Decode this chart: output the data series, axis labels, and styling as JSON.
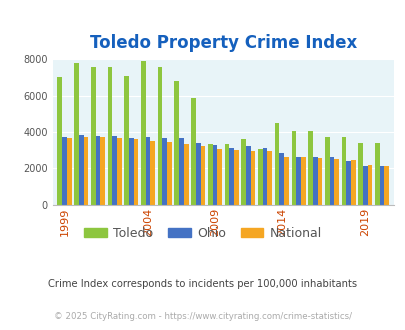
{
  "title": "Toledo Property Crime Index",
  "title_color": "#1560bd",
  "subtitle": "Crime Index corresponds to incidents per 100,000 inhabitants",
  "subtitle_color": "#444444",
  "footer": "© 2025 CityRating.com - https://www.cityrating.com/crime-statistics/",
  "footer_color": "#aaaaaa",
  "years": [
    1999,
    2000,
    2001,
    2002,
    2003,
    2004,
    2005,
    2006,
    2008,
    2009,
    2010,
    2011,
    2013,
    2014,
    2015,
    2016,
    2017,
    2018,
    2019,
    2020
  ],
  "toledo": [
    7050,
    7800,
    7600,
    7600,
    7100,
    7900,
    7600,
    6800,
    5900,
    3350,
    3350,
    3600,
    3050,
    4500,
    4050,
    4050,
    3700,
    3700,
    3400,
    3400
  ],
  "ohio": [
    3700,
    3850,
    3800,
    3800,
    3650,
    3700,
    3650,
    3650,
    3400,
    3300,
    3100,
    3250,
    3100,
    2850,
    2650,
    2600,
    2600,
    2400,
    2150,
    2100
  ],
  "national": [
    3650,
    3700,
    3700,
    3650,
    3600,
    3500,
    3450,
    3350,
    3250,
    3050,
    3000,
    2950,
    2950,
    2600,
    2600,
    2550,
    2500,
    2450,
    2200,
    2100
  ],
  "toledo_color": "#8dc63f",
  "ohio_color": "#4472c4",
  "national_color": "#f5a623",
  "plot_bg_color": "#e8f4f8",
  "ylim": [
    0,
    8000
  ],
  "yticks": [
    0,
    2000,
    4000,
    6000,
    8000
  ],
  "xtick_years": [
    1999,
    2004,
    2009,
    2014,
    2019
  ],
  "bar_width": 0.28,
  "legend_labels": [
    "Toledo",
    "Ohio",
    "National"
  ]
}
